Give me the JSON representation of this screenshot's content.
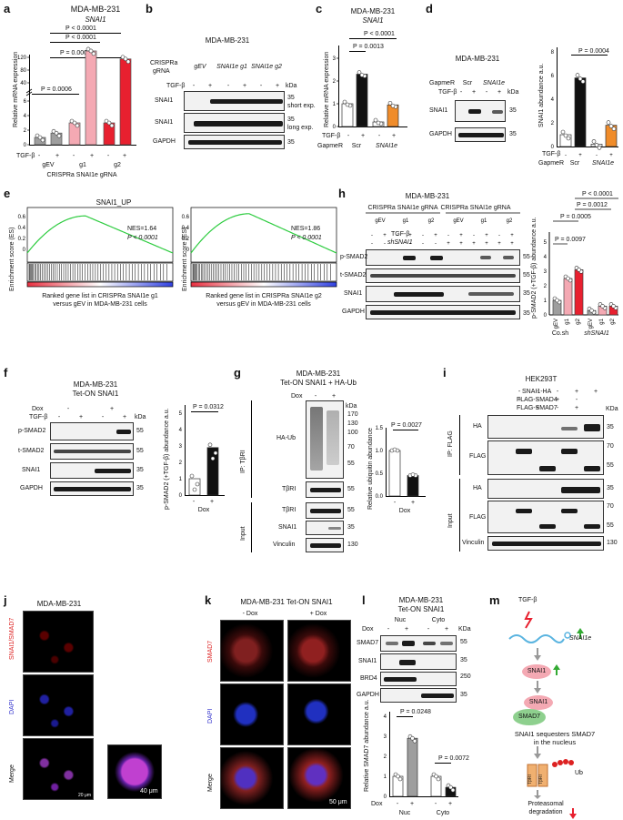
{
  "panels": {
    "a": {
      "label": "a",
      "title": "MDA-MB-231",
      "subtitle": "SNAI1",
      "ylabel": "Relative mRNA expression",
      "pvals": [
        "P < 0.0001",
        "P < 0.0001",
        "P = 0.0004",
        "P = 0.0006"
      ],
      "yticks": [
        "0",
        "2",
        "4",
        "6",
        "40",
        "80",
        "120"
      ],
      "tgf": "TGF-β",
      "minus": "-",
      "plus": "+",
      "groups": [
        "gEV",
        "g1",
        "g2"
      ],
      "footer": "CRISPRa SNAI1e gRNA",
      "chart_data": {
        "type": "bar",
        "categories": [
          "gEV -",
          "gEV +",
          "g1 -",
          "g1 +",
          "g2 -",
          "g2 +"
        ],
        "values": [
          1,
          1.6,
          3,
          140,
          3,
          115
        ],
        "colors": [
          "#9e9e9e",
          "#9e9e9e",
          "#f4a9b3",
          "#f4a9b3",
          "#e8202f",
          "#e8202f"
        ]
      }
    },
    "b": {
      "label": "b",
      "title": "MDA-MB-231",
      "row0": "CRISPRa",
      "row1": "gRNA",
      "cols": [
        "gEV",
        "SNAI1e g1",
        "SNAI1e g2"
      ],
      "tgf": "TGF-β",
      "kda": "kDa",
      "signs": [
        "-",
        "+",
        "-",
        "+",
        "-",
        "+"
      ],
      "rows": [
        "SNAI1",
        "SNAI1",
        "GAPDH"
      ],
      "mw": [
        "35",
        "35",
        "35"
      ],
      "notes": [
        "short exp.",
        "long exp."
      ]
    },
    "c": {
      "label": "c",
      "title": "MDA-MB-231",
      "subtitle": "SNAI1",
      "ylabel": "Relative mRNA expression",
      "pvals": [
        "P < 0.0001",
        "P = 0.0013"
      ],
      "yticks": [
        "0",
        "1",
        "2",
        "3"
      ],
      "tgf": "TGF-β",
      "gapmer": "GapmeR",
      "signs": [
        "-",
        "+",
        "-",
        "+"
      ],
      "groups": [
        "Scr",
        "SNAI1e"
      ],
      "chart_data": {
        "type": "bar",
        "categories": [
          "Scr -",
          "Scr +",
          "SNAI1e -",
          "SNAI1e +"
        ],
        "values": [
          1,
          2.3,
          0.2,
          0.95
        ],
        "colors": [
          "#ffffff",
          "#111111",
          "#ffffff",
          "#f08c2a"
        ]
      }
    },
    "d": {
      "label": "d",
      "title": "MDA-MB-231",
      "gapmer": "GapmeR",
      "groups": [
        "Scr",
        "SNAI1e"
      ],
      "tgf": "TGF-β",
      "kda": "kDa",
      "signs": [
        "-",
        "+",
        "-",
        "+"
      ],
      "rows": [
        "SNAI1",
        "GAPDH"
      ],
      "mw": [
        "35",
        "35"
      ],
      "ylabel": "SNAI1 abundance a.u.",
      "pval": "P = 0.0004",
      "yticks": [
        "0",
        "2",
        "4",
        "6",
        "8"
      ],
      "chart_data": {
        "type": "bar",
        "categories": [
          "Scr -",
          "Scr +",
          "SNAI1e -",
          "SNAI1e +"
        ],
        "values": [
          1,
          5.8,
          0.2,
          1.8
        ],
        "colors": [
          "#ffffff",
          "#111111",
          "#ffffff",
          "#f08c2a"
        ]
      }
    },
    "e": {
      "label": "e",
      "plots": [
        {
          "title": "SNAI1_UP",
          "nes": "NES=1.64",
          "p": "P < 0.0001",
          "caption1": "Ranked gene list in CRISPRa SNAI1e g1",
          "caption2": "versus gEV in MDA-MB-231 cells"
        },
        {
          "title": "",
          "nes": "NES=1.86",
          "p": "P < 0.0001",
          "caption1": "Ranked gene list in CRISPRa SNAI1e g2",
          "caption2": "versus gEV in MDA-MB-231 cells"
        }
      ],
      "ylabel": "Enrichment score (ES)",
      "yticks": [
        "0.6",
        "0.4",
        "0.2",
        "0"
      ]
    },
    "f": {
      "label": "f",
      "title": "MDA-MB-231",
      "subtitle": "Tet-ON SNAI1",
      "dox": "Dox",
      "tgf": "TGF-β",
      "kda": "kDa",
      "signs_dox": [
        "-",
        "+"
      ],
      "signs_tgf": [
        "-",
        "+",
        "-",
        "+"
      ],
      "rows": [
        "p-SMAD2",
        "t-SMAD2",
        "SNAI1",
        "GAPDH"
      ],
      "mw": [
        "55",
        "55",
        "35",
        "35"
      ],
      "ylabel": "p-SMAD2 (+TGF-β) abundance a.u.",
      "pval": "P = 0.0312",
      "yticks": [
        "0",
        "1",
        "2",
        "3",
        "4",
        "5"
      ],
      "x": [
        "-",
        "+"
      ],
      "xlabel": "Dox",
      "chart_data": {
        "type": "bar",
        "categories": [
          "-",
          "+"
        ],
        "values": [
          1,
          2.9
        ]
      }
    },
    "g": {
      "label": "g",
      "title": "MDA-MB-231",
      "subtitle": "Tet-ON SNAI1 + HA-Ub",
      "dox": "Dox",
      "kda": "kDa",
      "signs": [
        "-",
        "+"
      ],
      "ip": "IP: TβRI",
      "input": "Input",
      "rows": [
        "HA-Ub",
        "TβRI",
        "TβRI",
        "SNAI1",
        "Vinculin"
      ],
      "mw": [
        "170",
        "130",
        "100",
        "70",
        "55",
        "55",
        "55",
        "35",
        "130"
      ],
      "ylabel": "Relative ubiquitin abundance",
      "pval": "P = 0.0027",
      "yticks": [
        "0.0",
        "0.5",
        "1.0",
        "1.5"
      ],
      "x": [
        "-",
        "+"
      ],
      "xlabel": "Dox",
      "chart_data": {
        "type": "bar",
        "categories": [
          "-",
          "+"
        ],
        "values": [
          1.0,
          0.45
        ]
      }
    },
    "h": {
      "label": "h",
      "title": "MDA-MB-231",
      "hdr1": "CRISPRa SNAI1e gRNA",
      "hdr2": "CRISPRa SNAI1e gRNA",
      "cols": [
        "gEV",
        "g1",
        "g2",
        "gEV",
        "g1",
        "g2"
      ],
      "tgf": "TGF-β",
      "sh": "shSNAI1",
      "tgf_signs": [
        "-",
        "+",
        "-",
        "+",
        "-",
        "+",
        "-",
        "+",
        "-",
        "+",
        "-",
        "+"
      ],
      "sh_signs": [
        "-",
        "-",
        "-",
        "-",
        "-",
        "-",
        "+",
        "+",
        "+",
        "+",
        "+",
        "+"
      ],
      "rows": [
        "p-SMAD2",
        "t-SMAD2",
        "SNAI1",
        "GAPDH"
      ],
      "mw": [
        "55",
        "55",
        "35",
        "35"
      ],
      "ylabel": "p-SMAD2 (+TGF-β) abundance a.u.",
      "pvals": [
        "P < 0.0001",
        "P = 0.0012",
        "P = 0.0005",
        "P = 0.0097"
      ],
      "yticks": [
        "0",
        "1",
        "2",
        "3",
        "4",
        "5"
      ],
      "xcats": [
        "gEV",
        "g1",
        "g2",
        "gEV",
        "g1",
        "g2"
      ],
      "groups": [
        "Co.sh",
        "shSNAI1"
      ],
      "chart_data": {
        "type": "bar",
        "categories": [
          "Co.sh gEV",
          "Co.sh g1",
          "Co.sh g2",
          "shSNAI1 gEV",
          "shSNAI1 g1",
          "shSNAI1 g2"
        ],
        "values": [
          1,
          2.5,
          3.1,
          0.3,
          0.6,
          0.6
        ],
        "colors": [
          "#9e9e9e",
          "#f4a9b3",
          "#e8202f",
          "#9e9e9e",
          "#f4a9b3",
          "#e8202f"
        ]
      }
    },
    "i": {
      "label": "i",
      "title": "HEK293T",
      "conds": [
        "SNAI1-HA",
        "FLAG-SMAD4",
        "FLAG-SMAD7"
      ],
      "kda": "KDa",
      "signs": [
        [
          "-",
          "-",
          "-",
          "+",
          "+"
        ],
        [
          "+",
          "-",
          "+",
          "-",
          ""
        ],
        [
          "-",
          "+",
          "-",
          "+",
          ""
        ]
      ],
      "ip": "IP: FLAG",
      "input": "Input",
      "rows": [
        "HA",
        "FLAG",
        "HA",
        "FLAG",
        "Vinculin"
      ],
      "mw": [
        "35",
        "70",
        "55",
        "35",
        "70",
        "55",
        "130"
      ]
    },
    "j": {
      "label": "j",
      "title": "MDA-MB-231",
      "rows": [
        "SNAI1/SMAD7",
        "DAPI",
        "Merge"
      ],
      "scale": "40 μm",
      "scale2": "20 μm"
    },
    "k": {
      "label": "k",
      "title": "MDA-MB-231 Tet-ON SNAI1",
      "cols": [
        "- Dox",
        "+ Dox"
      ],
      "rows": [
        "SMAD7",
        "DAPI",
        "Merge"
      ],
      "scale": "50 μm"
    },
    "l": {
      "label": "l",
      "title": "MDA-MB-231",
      "subtitle": "Tet-ON SNAI1",
      "cols": [
        "Nuc",
        "Cyto"
      ],
      "dox": "Dox",
      "kda": "KDa",
      "signs": [
        "-",
        "+",
        "-",
        "+"
      ],
      "rows": [
        "SMAD7",
        "SNAI1",
        "BRD4",
        "GAPDH"
      ],
      "mw": [
        "55",
        "35",
        "250",
        "35"
      ],
      "ylabel": "Relative SMAD7 abundance a.u.",
      "pvals": [
        "P = 0.0248",
        "P = 0.0072"
      ],
      "yticks": [
        "0",
        "1",
        "2",
        "3",
        "4"
      ],
      "xcats": [
        "Nuc",
        "Cyto"
      ],
      "chart_data": {
        "type": "bar",
        "categories": [
          "Nuc -",
          "Nuc +",
          "Cyto -",
          "Cyto +"
        ],
        "values": [
          1,
          2.9,
          1,
          0.45
        ]
      }
    },
    "m": {
      "label": "m",
      "tgf": "TGF-β",
      "gene": "SNAI1e",
      "protein": "SNAI1",
      "complex_top": "SNAI1",
      "complex_bot": "SMAD7",
      "caption1": "SNAI1 sequesters SMAD7",
      "caption2": "in the nucleus",
      "ub": "Ub",
      "receptor": "TβRI",
      "deg1": "Proteasomal",
      "deg2": "degradation"
    }
  }
}
